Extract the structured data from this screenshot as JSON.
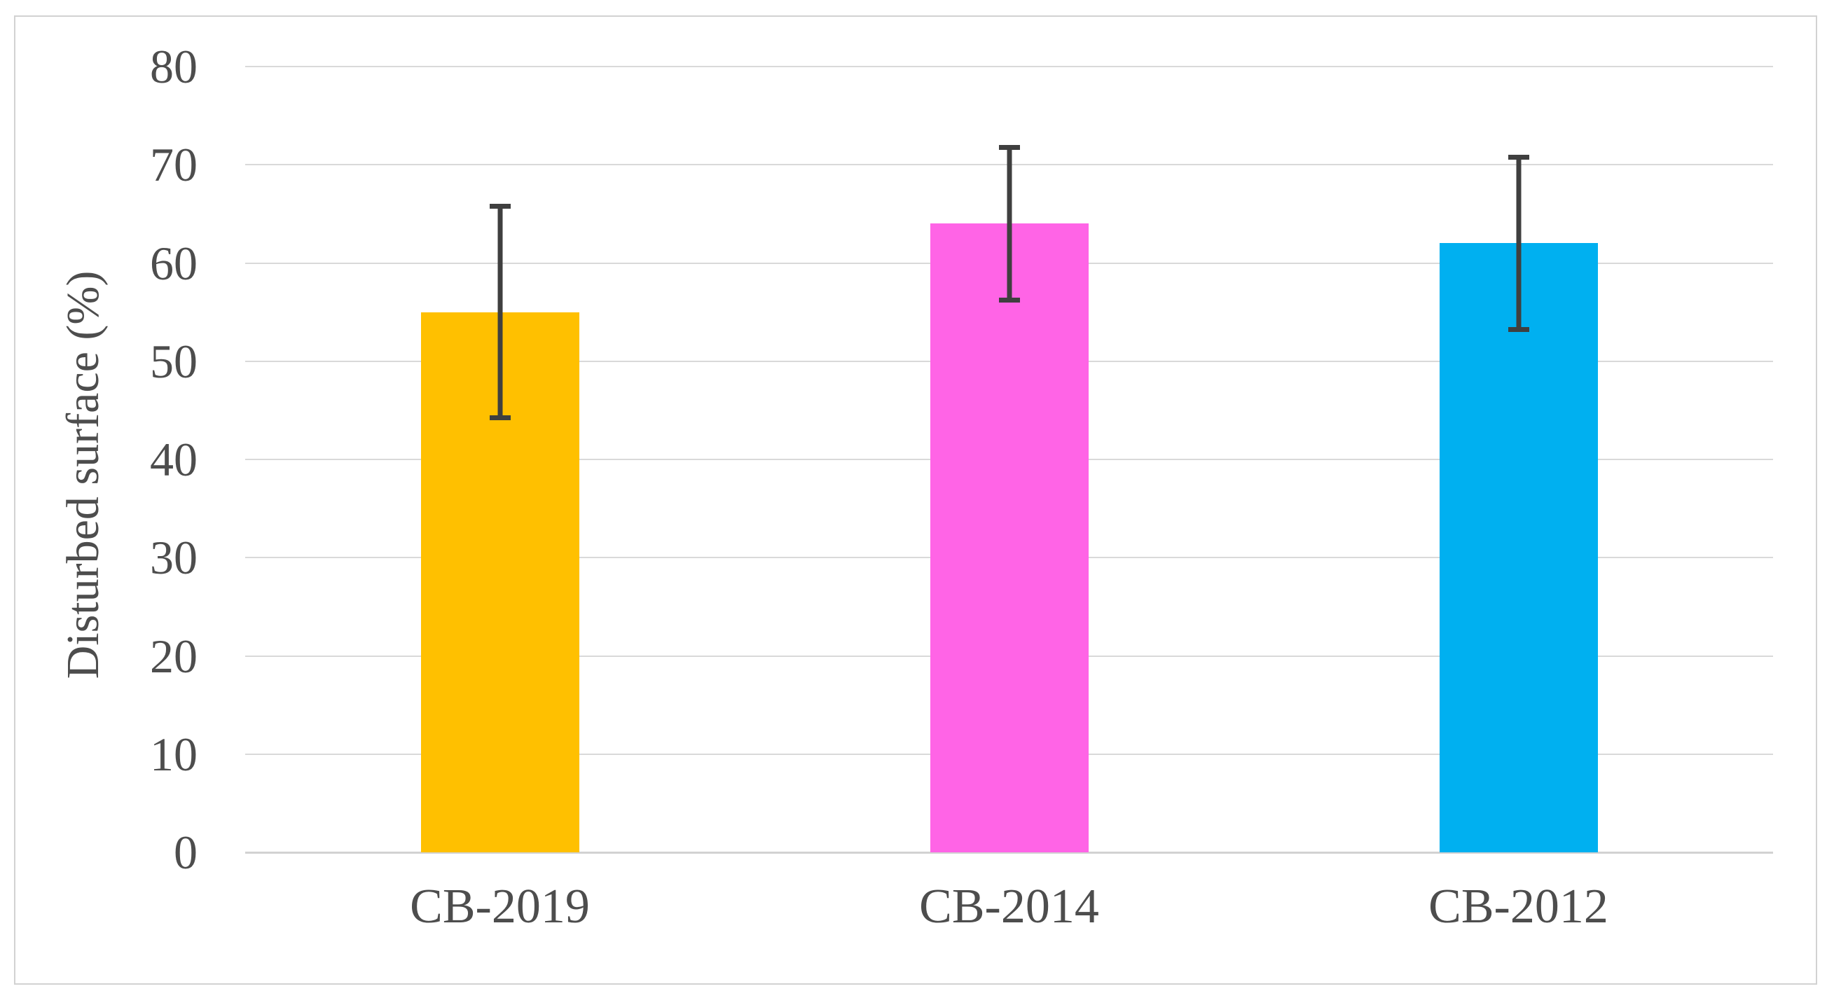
{
  "figure": {
    "background": "#FFFFFF",
    "frame_border_color": "#D2D2D2"
  },
  "chart_data": {
    "type": "bar",
    "title": "",
    "categories": [
      "CB-2019",
      "CB-2014",
      "CB-2012"
    ],
    "values": [
      55,
      64,
      62
    ],
    "error_bars_plus_minus": [
      11,
      8,
      9
    ],
    "error_bar_ranges": [
      [
        44,
        66
      ],
      [
        56,
        72
      ],
      [
        53,
        71
      ]
    ],
    "bar_colors": [
      "#FFC000",
      "#FF64E6",
      "#00B0F0"
    ],
    "error_bar_color": "#3F3F3F",
    "xlabel": "",
    "ylabel": "Disturbed surface (%)",
    "ylim": [
      0,
      80
    ],
    "yticks": [
      0,
      10,
      20,
      30,
      40,
      50,
      60,
      70,
      80
    ],
    "grid": "horizontal",
    "gridline_color": "#D9D9D9",
    "tick_label_color": "#4D4D4D",
    "legend_position": "none"
  }
}
